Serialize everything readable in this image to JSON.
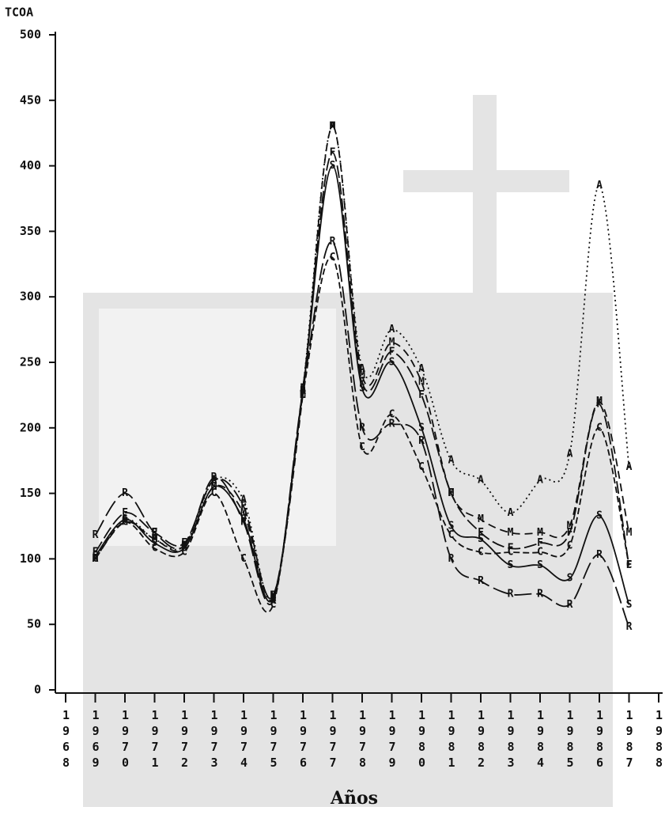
{
  "chart_data": {
    "type": "line",
    "y_label": "TCOA",
    "x_label": "Años",
    "xlim": [
      1968,
      1988
    ],
    "xticks": [
      1968,
      1969,
      1970,
      1971,
      1972,
      1973,
      1974,
      1975,
      1976,
      1977,
      1978,
      1979,
      1980,
      1981,
      1982,
      1983,
      1984,
      1985,
      1986,
      1987,
      1988
    ],
    "ylim": [
      0,
      500
    ],
    "yticks": [
      0,
      50,
      100,
      150,
      200,
      250,
      300,
      350,
      400,
      450,
      500
    ],
    "x": [
      1969,
      1970,
      1971,
      1972,
      1973,
      1974,
      1975,
      1976,
      1977,
      1978,
      1979,
      1980,
      1981,
      1982,
      1983,
      1984,
      1985,
      1986,
      1987
    ],
    "series": [
      {
        "name": "A",
        "color": "#111",
        "dash": "2,4",
        "values": [
          100,
          130,
          115,
          110,
          160,
          145,
          70,
          230,
          430,
          245,
          275,
          245,
          175,
          160,
          135,
          160,
          180,
          385,
          170
        ]
      },
      {
        "name": "M",
        "color": "#111",
        "dash": "10,6",
        "values": [
          100,
          128,
          115,
          108,
          155,
          135,
          72,
          225,
          430,
          240,
          265,
          235,
          150,
          130,
          120,
          120,
          125,
          220,
          120
        ]
      },
      {
        "name": "F",
        "color": "#111",
        "dash": "16,5",
        "values": [
          105,
          135,
          120,
          112,
          160,
          140,
          72,
          230,
          410,
          235,
          258,
          225,
          150,
          120,
          108,
          112,
          120,
          218,
          95
        ]
      },
      {
        "name": "S",
        "color": "#111",
        "dash": "none",
        "values": [
          102,
          130,
          112,
          108,
          155,
          130,
          70,
          228,
          400,
          230,
          250,
          200,
          125,
          115,
          95,
          95,
          85,
          133,
          65
        ]
      },
      {
        "name": "R",
        "color": "#111",
        "dash": "22,6",
        "values": [
          118,
          150,
          120,
          110,
          162,
          128,
          68,
          228,
          342,
          200,
          203,
          190,
          100,
          83,
          73,
          73,
          65,
          103,
          48
        ]
      },
      {
        "name": "C",
        "color": "#111",
        "dash": "8,4",
        "values": [
          100,
          128,
          108,
          105,
          150,
          100,
          65,
          225,
          330,
          185,
          210,
          170,
          118,
          105,
          105,
          105,
          110,
          200,
          95
        ]
      }
    ]
  }
}
